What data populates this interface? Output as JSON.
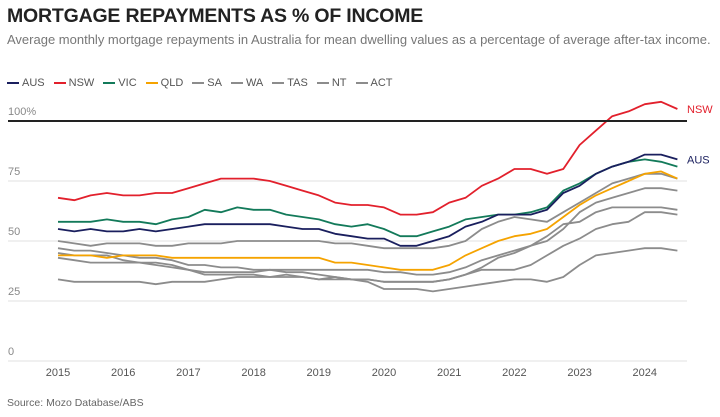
{
  "chart_data": {
    "type": "line",
    "title": "MORTGAGE REPAYMENTS AS % OF INCOME",
    "subtitle": "Average monthly mortgage repayments in Australia for mean dwelling values as a percentage of average after-tax income.",
    "source": "Source: Mozo Database/ABS",
    "xlabel": "",
    "ylabel": "",
    "xlim": [
      2014.6,
      2024.65
    ],
    "ylim": [
      0,
      100
    ],
    "x_ticks": [
      "2015",
      "2016",
      "2017",
      "2018",
      "2019",
      "2020",
      "2021",
      "2022",
      "2023",
      "2024"
    ],
    "y_ticks": [
      {
        "v": 0,
        "label": "0"
      },
      {
        "v": 25,
        "label": "25"
      },
      {
        "v": 50,
        "label": "50"
      },
      {
        "v": 75,
        "label": "75"
      },
      {
        "v": 100,
        "label": "100%"
      }
    ],
    "reference_line": 100,
    "x_start": 2015,
    "x_step": 0.25,
    "series": [
      {
        "name": "SA",
        "color": "#8c8c8c",
        "values": [
          47,
          46,
          46,
          45,
          44,
          43,
          43,
          42,
          40,
          40,
          39,
          39,
          38,
          38,
          38,
          38,
          38,
          38,
          38,
          38,
          37,
          37,
          36,
          36,
          37,
          39,
          42,
          44,
          46,
          48,
          50,
          55,
          62,
          66,
          68,
          70,
          72,
          72,
          71
        ]
      },
      {
        "name": "WA",
        "color": "#8c8c8c",
        "values": [
          43,
          42,
          41,
          41,
          41,
          41,
          40,
          39,
          38,
          37,
          37,
          37,
          37,
          38,
          37,
          37,
          36,
          35,
          34,
          34,
          33,
          33,
          33,
          33,
          34,
          36,
          39,
          43,
          45,
          48,
          52,
          57,
          58,
          62,
          64,
          64,
          64,
          64,
          63
        ]
      },
      {
        "name": "TAS",
        "color": "#8c8c8c",
        "values": [
          45,
          44,
          44,
          44,
          42,
          41,
          41,
          40,
          38,
          36,
          36,
          36,
          36,
          35,
          35,
          35,
          34,
          34,
          34,
          34,
          33,
          33,
          33,
          33,
          34,
          36,
          38,
          38,
          38,
          40,
          44,
          48,
          51,
          55,
          57,
          58,
          62,
          62,
          61
        ]
      },
      {
        "name": "NT",
        "color": "#8c8c8c",
        "values": [
          34,
          33,
          33,
          33,
          33,
          33,
          32,
          33,
          33,
          33,
          34,
          35,
          35,
          35,
          36,
          35,
          34,
          35,
          34,
          33,
          30,
          30,
          30,
          29,
          30,
          31,
          32,
          33,
          34,
          34,
          33,
          35,
          40,
          44,
          45,
          46,
          47,
          47,
          46
        ]
      },
      {
        "name": "ACT",
        "color": "#8c8c8c",
        "values": [
          50,
          49,
          48,
          49,
          49,
          49,
          48,
          48,
          49,
          49,
          49,
          50,
          50,
          50,
          50,
          50,
          50,
          49,
          49,
          48,
          47,
          47,
          47,
          47,
          48,
          50,
          55,
          58,
          60,
          59,
          58,
          62,
          66,
          70,
          74,
          76,
          78,
          78,
          76
        ]
      },
      {
        "name": "QLD",
        "color": "#f5a300",
        "values": [
          44,
          44,
          44,
          43,
          44,
          44,
          44,
          43,
          43,
          43,
          43,
          43,
          43,
          43,
          43,
          43,
          43,
          41,
          41,
          40,
          39,
          38,
          38,
          38,
          40,
          44,
          47,
          50,
          52,
          53,
          55,
          60,
          65,
          69,
          72,
          75,
          78,
          79,
          76
        ]
      },
      {
        "name": "VIC",
        "color": "#137a5a",
        "values": [
          58,
          58,
          58,
          59,
          58,
          58,
          57,
          59,
          60,
          63,
          62,
          64,
          63,
          63,
          61,
          60,
          59,
          57,
          56,
          57,
          55,
          52,
          52,
          54,
          56,
          59,
          60,
          61,
          61,
          62,
          64,
          71,
          74,
          78,
          81,
          83,
          84,
          83,
          81
        ]
      },
      {
        "name": "AUS",
        "color": "#1a1f5e",
        "values": [
          55,
          54,
          55,
          54,
          54,
          55,
          54,
          55,
          56,
          57,
          57,
          57,
          57,
          57,
          56,
          55,
          55,
          53,
          52,
          51,
          51,
          48,
          48,
          50,
          52,
          56,
          58,
          61,
          61,
          61,
          63,
          70,
          73,
          78,
          81,
          83,
          86,
          86,
          84
        ],
        "end_label": "AUS"
      },
      {
        "name": "NSW",
        "color": "#e2202c",
        "values": [
          68,
          67,
          69,
          70,
          69,
          69,
          70,
          70,
          72,
          74,
          76,
          76,
          76,
          75,
          73,
          71,
          69,
          66,
          65,
          65,
          64,
          61,
          61,
          62,
          66,
          68,
          73,
          76,
          80,
          80,
          78,
          80,
          90,
          96,
          102,
          104,
          107,
          108,
          105
        ],
        "end_label": "NSW"
      }
    ],
    "legend": [
      "AUS",
      "NSW",
      "VIC",
      "QLD",
      "SA",
      "WA",
      "TAS",
      "NT",
      "ACT"
    ],
    "legend_placement": "top-left"
  }
}
